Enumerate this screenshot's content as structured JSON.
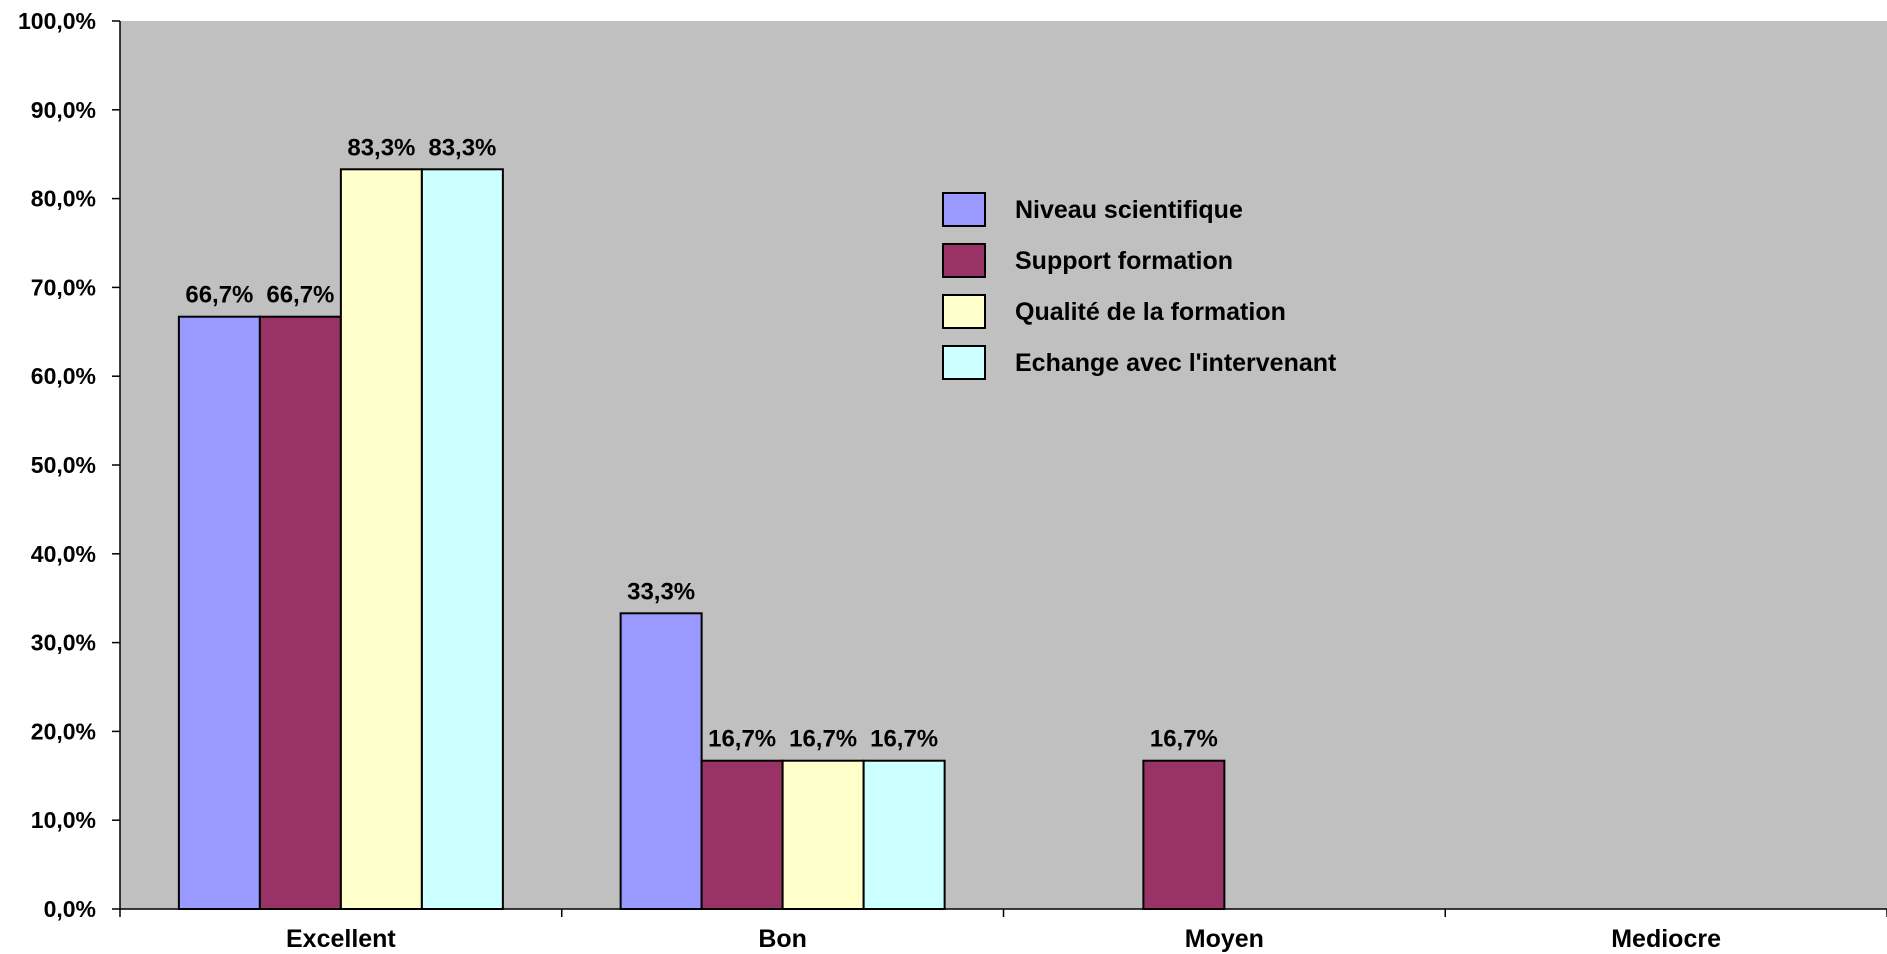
{
  "chart_data": {
    "type": "bar",
    "title": "",
    "xlabel": "",
    "ylabel": "",
    "ylim": [
      0,
      100
    ],
    "yticks": [
      "0,0%",
      "10,0%",
      "20,0%",
      "30,0%",
      "40,0%",
      "50,0%",
      "60,0%",
      "70,0%",
      "80,0%",
      "90,0%",
      "100,0%"
    ],
    "categories": [
      "Excellent",
      "Bon",
      "Moyen",
      "Mediocre"
    ],
    "grid": false,
    "legend_position": "top-center",
    "series": [
      {
        "name": "Niveau scientifique",
        "color": "#9999ff",
        "values": [
          66.7,
          33.3,
          null,
          null
        ],
        "labels": [
          "66,7%",
          "33,3%",
          "",
          ""
        ]
      },
      {
        "name": "Support formation",
        "color": "#993366",
        "values": [
          66.7,
          16.7,
          16.7,
          null
        ],
        "labels": [
          "66,7%",
          "16,7%",
          "16,7%",
          ""
        ]
      },
      {
        "name": "Qualité de la formation",
        "color": "#ffffcc",
        "values": [
          83.3,
          16.7,
          null,
          null
        ],
        "labels": [
          "83,3%",
          "16,7%",
          "",
          ""
        ]
      },
      {
        "name": "Echange avec l'intervenant",
        "color": "#ccffff",
        "values": [
          83.3,
          16.7,
          null,
          null
        ],
        "labels": [
          "83,3%",
          "16,7%",
          "",
          ""
        ]
      }
    ],
    "plot_background": "#c0c0c0"
  }
}
